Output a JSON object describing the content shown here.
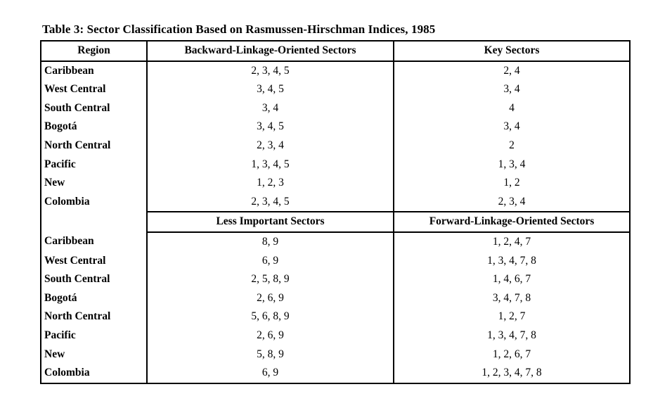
{
  "title": "Table 3: Sector Classification Based on Rasmussen-Hirschman Indices, 1985",
  "colors": {
    "background": "#ffffff",
    "text": "#000000",
    "border": "#000000"
  },
  "table": {
    "header1": {
      "region": "Region",
      "col2": "Backward-Linkage-Oriented Sectors",
      "col3": "Key Sectors"
    },
    "header2": {
      "region": "",
      "col2": "Less Important Sectors",
      "col3": "Forward-Linkage-Oriented Sectors"
    },
    "top_rows": [
      {
        "region": "Caribbean",
        "backward": "2, 3, 4, 5",
        "key": "2, 4"
      },
      {
        "region": "West Central",
        "backward": "3, 4, 5",
        "key": "3, 4"
      },
      {
        "region": "South Central",
        "backward": "3, 4",
        "key": "4"
      },
      {
        "region": "Bogotá",
        "backward": "3, 4, 5",
        "key": "3, 4"
      },
      {
        "region": "North Central",
        "backward": "2, 3, 4",
        "key": "2"
      },
      {
        "region": "Pacific",
        "backward": "1, 3, 4, 5",
        "key": "1, 3, 4"
      },
      {
        "region": "New",
        "backward": "1, 2, 3",
        "key": "1, 2"
      },
      {
        "region": "Colombia",
        "backward": "2, 3, 4, 5",
        "key": "2, 3, 4"
      }
    ],
    "bottom_rows": [
      {
        "region": "Caribbean",
        "less": "8, 9",
        "forward": "1, 2, 4, 7"
      },
      {
        "region": "West Central",
        "less": "6, 9",
        "forward": "1, 3, 4, 7, 8"
      },
      {
        "region": "South Central",
        "less": "2, 5, 8, 9",
        "forward": "1, 4, 6, 7"
      },
      {
        "region": "Bogotá",
        "less": "2, 6, 9",
        "forward": "3, 4, 7, 8"
      },
      {
        "region": "North Central",
        "less": "5, 6, 8, 9",
        "forward": "1, 2, 7"
      },
      {
        "region": "Pacific",
        "less": "2, 6, 9",
        "forward": "1, 3, 4, 7, 8"
      },
      {
        "region": "New",
        "less": "5, 8, 9",
        "forward": "1, 2, 6, 7"
      },
      {
        "region": "Colombia",
        "less": "6, 9",
        "forward": "1, 2, 3, 4, 7, 8"
      }
    ]
  }
}
